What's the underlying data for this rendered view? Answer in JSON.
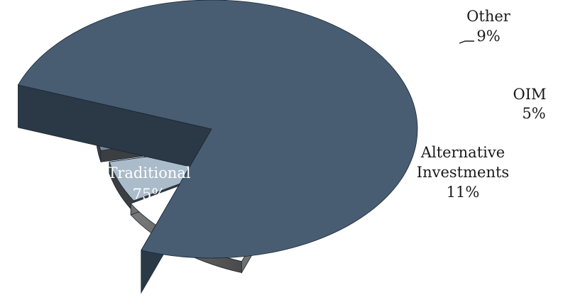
{
  "chart_data": {
    "type": "pie",
    "style": "3d-exploded",
    "title": "",
    "slices": [
      {
        "label": "Traditional",
        "value": 75,
        "pct_label": "75%",
        "color": "#485d72",
        "side_color": "#2b3846"
      },
      {
        "label": "Alternative Investments",
        "value": 11,
        "pct_label": "11%",
        "color": "#ffffff",
        "side_color": "#707070"
      },
      {
        "label": "OIM",
        "value": 5,
        "pct_label": "5%",
        "color": "#aabbca",
        "side_color": "#3c3f42"
      },
      {
        "label": "Other",
        "value": 9,
        "pct_label": "9%",
        "color": "#788a9c",
        "side_color": "#3c3f42"
      }
    ]
  }
}
